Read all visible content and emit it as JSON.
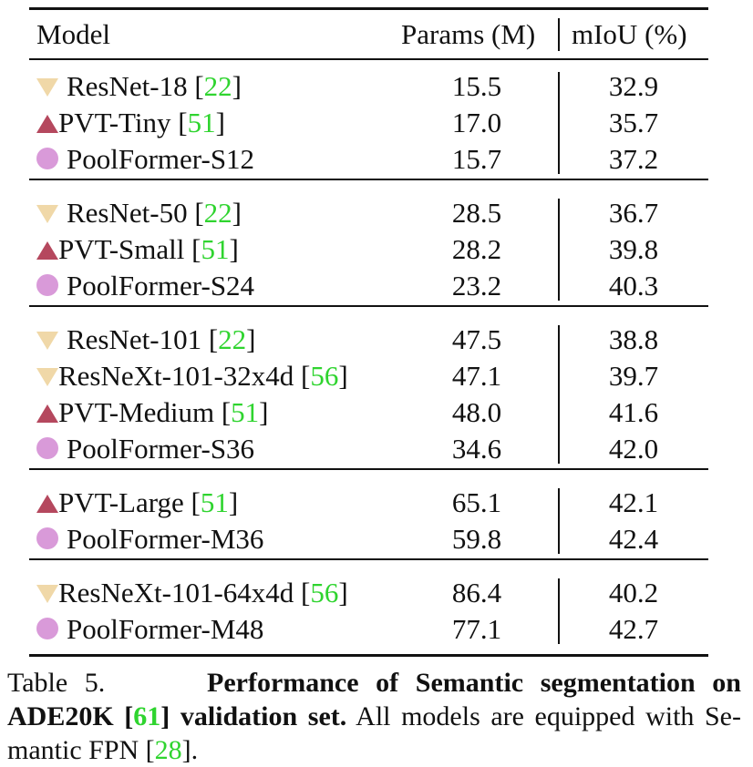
{
  "header": {
    "model": "Model",
    "params": "Params (M)",
    "miou": "mIoU (%)"
  },
  "groups": [
    {
      "rows": [
        {
          "marker": "down-triangle",
          "name": "ResNet-18 [",
          "cite": "22",
          "close": "]",
          "params": "15.5",
          "miou": "32.9"
        },
        {
          "marker": "up-triangle",
          "name": "PVT-Tiny [",
          "cite": "51",
          "close": "]",
          "params": "17.0",
          "miou": "35.7"
        },
        {
          "marker": "circle",
          "name": "PoolFormer-S12",
          "cite": "",
          "close": "",
          "params": "15.7",
          "miou": "37.2"
        }
      ]
    },
    {
      "rows": [
        {
          "marker": "down-triangle",
          "name": "ResNet-50 [",
          "cite": "22",
          "close": "]",
          "params": "28.5",
          "miou": "36.7"
        },
        {
          "marker": "up-triangle",
          "name": "PVT-Small [",
          "cite": "51",
          "close": "]",
          "params": "28.2",
          "miou": "39.8"
        },
        {
          "marker": "circle",
          "name": "PoolFormer-S24",
          "cite": "",
          "close": "",
          "params": "23.2",
          "miou": "40.3"
        }
      ]
    },
    {
      "rows": [
        {
          "marker": "down-triangle",
          "name": "ResNet-101 [",
          "cite": "22",
          "close": "]",
          "params": "47.5",
          "miou": "38.8"
        },
        {
          "marker": "down-triangle",
          "name": "ResNeXt-101-32x4d [",
          "cite": "56",
          "close": "]",
          "params": "47.1",
          "miou": "39.7"
        },
        {
          "marker": "up-triangle",
          "name": "PVT-Medium [",
          "cite": "51",
          "close": "]",
          "params": "48.0",
          "miou": "41.6"
        },
        {
          "marker": "circle",
          "name": "PoolFormer-S36",
          "cite": "",
          "close": "",
          "params": "34.6",
          "miou": "42.0"
        }
      ]
    },
    {
      "rows": [
        {
          "marker": "up-triangle",
          "name": "PVT-Large [",
          "cite": "51",
          "close": "]",
          "params": "65.1",
          "miou": "42.1"
        },
        {
          "marker": "circle",
          "name": "PoolFormer-M36",
          "cite": "",
          "close": "",
          "params": "59.8",
          "miou": "42.4"
        }
      ]
    },
    {
      "rows": [
        {
          "marker": "down-triangle",
          "name": "ResNeXt-101-64x4d [",
          "cite": "56",
          "close": "]",
          "params": "86.4",
          "miou": "40.2"
        },
        {
          "marker": "circle",
          "name": "PoolFormer-M48",
          "cite": "",
          "close": "",
          "params": "77.1",
          "miou": "42.7"
        }
      ]
    }
  ],
  "caption": {
    "label": "Table 5.",
    "bold1": "Performance of Semantic segmentation on",
    "bold2a": "ADE20K [",
    "bold2cite": "61",
    "bold2b": "] validation set.",
    "rest2": " All models are equipped with Se-",
    "rest3a": "mantic FPN [",
    "rest3cite": "28",
    "rest3b": "]."
  },
  "colors": {
    "convnet_marker": "#f0d8a8",
    "pvt_marker": "#b5485e",
    "poolformer_marker": "#d99ad9",
    "citation": "#2fd42f"
  },
  "icons": {
    "down-triangle": "down-triangle-icon",
    "up-triangle": "up-triangle-icon",
    "circle": "circle-icon"
  }
}
